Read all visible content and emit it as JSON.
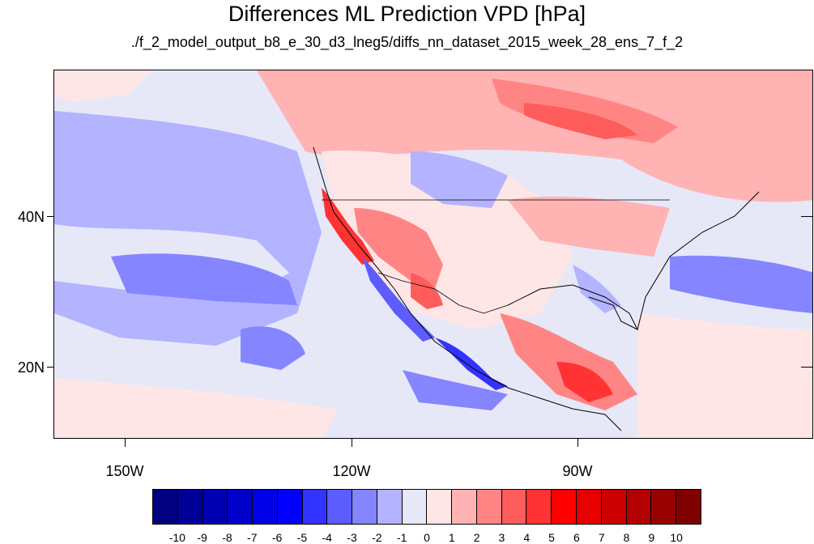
{
  "title": "Differences ML Prediction VPD [hPa]",
  "subtitle": "./f_2_model_output_b8_e_30_d3_lneg5/diffs_nn_dataset_2015_week_28_ens_7_f_2",
  "map": {
    "lat_labels": [
      "40N",
      "20N"
    ],
    "lon_labels": [
      "150W",
      "120W",
      "90W"
    ],
    "background": "#e6e8f8"
  },
  "colorbar": {
    "colors": [
      "#000080",
      "#000099",
      "#0000b3",
      "#0000cc",
      "#0000e6",
      "#0000ff",
      "#3333ff",
      "#5c5cff",
      "#8585ff",
      "#b3b3ff",
      "#e6e8f8",
      "#ffe6e6",
      "#ffb3b3",
      "#ff8585",
      "#ff5c5c",
      "#ff3333",
      "#ff0000",
      "#e60000",
      "#cc0000",
      "#b30000",
      "#990000",
      "#800000"
    ],
    "labels": [
      "-10",
      "-9",
      "-8",
      "-7",
      "-6",
      "-5",
      "-4",
      "-3",
      "-2",
      "-1",
      "0",
      "1",
      "2",
      "3",
      "4",
      "5",
      "6",
      "7",
      "8",
      "9",
      "10"
    ]
  }
}
